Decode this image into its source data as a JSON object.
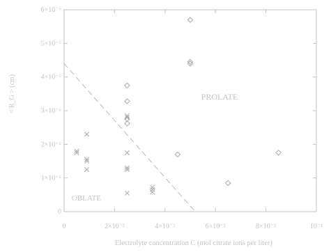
{
  "chart_data": {
    "type": "scatter",
    "xlabel": "Electrolyte concentration C (mol citrate ions per liter)",
    "ylabel": "< R_G > (cm)",
    "xlim": [
      0,
      0.1
    ],
    "ylim": [
      0,
      6e-06
    ],
    "x_ticks": [
      {
        "value": 0,
        "label": "0"
      },
      {
        "value": 0.02,
        "label": "2×10⁻²"
      },
      {
        "value": 0.04,
        "label": "4×10⁻²"
      },
      {
        "value": 0.06,
        "label": "6×10⁻²"
      },
      {
        "value": 0.08,
        "label": "8×10⁻²"
      },
      {
        "value": 0.1,
        "label": "10⁻¹"
      }
    ],
    "y_ticks": [
      {
        "value": 0,
        "label": "0"
      },
      {
        "value": 1e-06,
        "label": "1×10⁻⁶"
      },
      {
        "value": 2e-06,
        "label": "2×10⁻⁶"
      },
      {
        "value": 3e-06,
        "label": "3×10⁻⁶"
      },
      {
        "value": 4e-06,
        "label": "4×10⁻⁶"
      },
      {
        "value": 5e-06,
        "label": "5×10⁻⁶"
      },
      {
        "value": 6e-06,
        "label": "6×10⁻⁶"
      }
    ],
    "grid": false,
    "series": [
      {
        "marker": "cross",
        "points": [
          [
            0.005,
            1.8e-06
          ],
          [
            0.005,
            1.75e-06
          ],
          [
            0.009,
            2.3e-06
          ],
          [
            0.009,
            1.55e-06
          ],
          [
            0.009,
            1.5e-06
          ],
          [
            0.009,
            1.25e-06
          ],
          [
            0.025,
            1.75e-06
          ],
          [
            0.025,
            1.3e-06
          ],
          [
            0.025,
            1.25e-06
          ],
          [
            0.025,
            5.5e-07
          ],
          [
            0.025,
            2.85e-06
          ],
          [
            0.025,
            2.8e-06
          ],
          [
            0.035,
            7.2e-07
          ],
          [
            0.035,
            6.5e-07
          ],
          [
            0.035,
            5.8e-07
          ]
        ]
      },
      {
        "marker": "diamond",
        "points": [
          [
            0.025,
            3.75e-06
          ],
          [
            0.025,
            3.28e-06
          ],
          [
            0.025,
            2.75e-06
          ],
          [
            0.025,
            2.62e-06
          ],
          [
            0.045,
            1.7e-06
          ],
          [
            0.05,
            5.7e-06
          ],
          [
            0.05,
            4.45e-06
          ],
          [
            0.05,
            4.4e-06
          ],
          [
            0.065,
            8.5e-07
          ],
          [
            0.085,
            1.75e-06
          ]
        ]
      }
    ],
    "boundary_line": {
      "from": [
        0,
        4.4e-06
      ],
      "to": [
        0.052,
        0
      ],
      "style": "dashed"
    },
    "annotations": [
      "PROLATE",
      "OBLATE"
    ]
  }
}
